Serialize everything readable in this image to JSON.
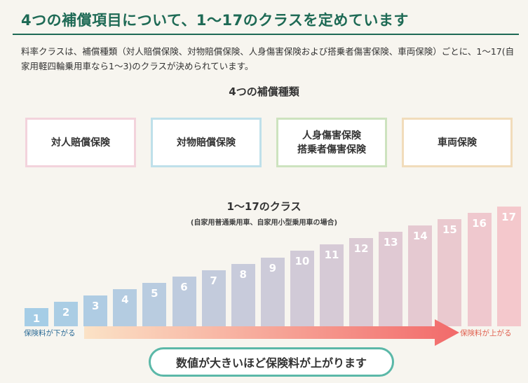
{
  "title": "4つの補償項目について、1～17のクラスを定めています",
  "description": "料率クラスは、補償種類（対人賠償保険、対物賠償保険、人身傷害保険および搭乗者傷害保険、車両保険）ごとに、1～17(自家用軽四輪乗用車なら1～3)のクラスが決められています。",
  "types_title": "4つの補償種類",
  "types": [
    {
      "lines": [
        "対人賠償保険"
      ],
      "border": "#f3d3dc"
    },
    {
      "lines": [
        "対物賠償保険"
      ],
      "border": "#bfe0ea"
    },
    {
      "lines": [
        "人身傷害保険",
        "搭乗者傷害保険"
      ],
      "border": "#cde3bf"
    },
    {
      "lines": [
        "車両保険"
      ],
      "border": "#f1dcbb"
    }
  ],
  "classes_title": "1～17のクラス",
  "classes_subtitle": "(自家用普通乗用車、自家用小型乗用車の場合)",
  "chart_data": {
    "type": "bar",
    "categories": [
      "1",
      "2",
      "3",
      "4",
      "5",
      "6",
      "7",
      "8",
      "9",
      "10",
      "11",
      "12",
      "13",
      "14",
      "15",
      "16",
      "17"
    ],
    "values": [
      1,
      2,
      3,
      4,
      5,
      6,
      7,
      8,
      9,
      10,
      11,
      12,
      13,
      14,
      15,
      16,
      17
    ]
  },
  "arrow": {
    "left_label": "保険料が下がる",
    "right_label": "保険料が上がる",
    "left_color": "#2a6a96",
    "right_color": "#e0604f"
  },
  "summary": "数値が大きいほど保険料が上がります"
}
